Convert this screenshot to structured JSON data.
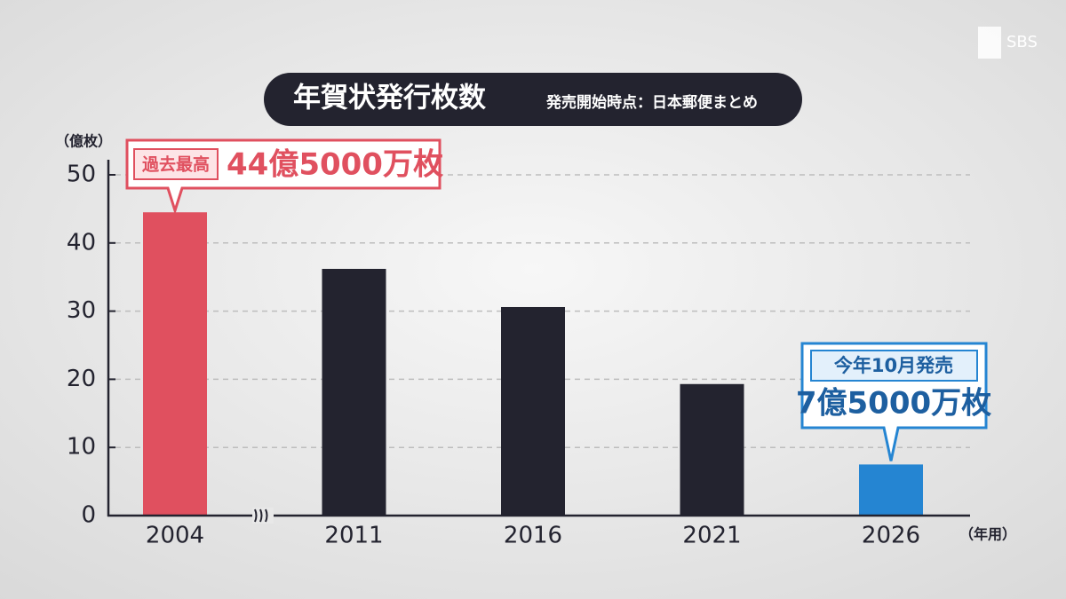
{
  "logo": "SBS",
  "chart_data": {
    "type": "bar",
    "title": "年賀状発行枚数",
    "subtitle": "発売開始時点：日本郵便まとめ",
    "y_unit": "（億枚）",
    "x_unit": "（年用）",
    "categories": [
      "2004",
      "2011",
      "2016",
      "2021",
      "2026"
    ],
    "values": [
      44.5,
      36.2,
      30.6,
      19.3,
      7.5
    ],
    "value_labels": [
      "44億5000万枚",
      null,
      null,
      null,
      "7億5000万枚"
    ],
    "value_notes": [
      "過去最高",
      null,
      null,
      null,
      "今年10月発売"
    ],
    "colors": [
      "#e0505f",
      "#23232f",
      "#23232f",
      "#23232f",
      "#2585d2"
    ],
    "ylim": [
      0,
      50
    ],
    "yticks": [
      0,
      10,
      20,
      30,
      40,
      50
    ],
    "grid": true
  }
}
